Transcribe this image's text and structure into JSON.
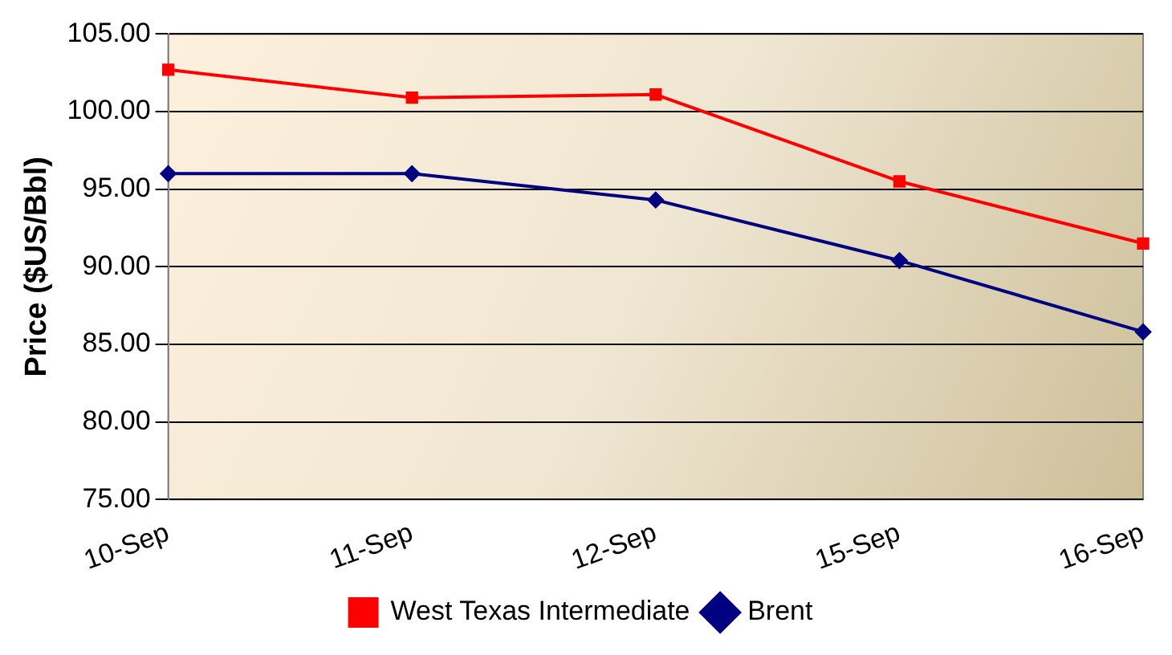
{
  "chart_data": {
    "type": "line",
    "ylabel": "Price ($US/Bbl)",
    "categories": [
      "10-Sep",
      "11-Sep",
      "12-Sep",
      "15-Sep",
      "16-Sep"
    ],
    "series": [
      {
        "name": "West Texas Intermediate",
        "color": "#ff0000",
        "marker": "square",
        "values": [
          102.7,
          100.9,
          101.1,
          95.5,
          91.5
        ]
      },
      {
        "name": "Brent",
        "color": "#000080",
        "marker": "diamond",
        "values": [
          96.0,
          96.0,
          94.3,
          90.4,
          85.8
        ]
      }
    ],
    "ylim": [
      75,
      105
    ],
    "yticks": [
      {
        "value": 75,
        "label": "75.00"
      },
      {
        "value": 80,
        "label": "80.00"
      },
      {
        "value": 85,
        "label": "85.00"
      },
      {
        "value": 90,
        "label": "90.00"
      },
      {
        "value": 95,
        "label": "95.00"
      },
      {
        "value": 100,
        "label": "100.00"
      },
      {
        "value": 105,
        "label": "105.00"
      }
    ],
    "grid": "y",
    "legend": "bottom",
    "line_style": "solid"
  }
}
